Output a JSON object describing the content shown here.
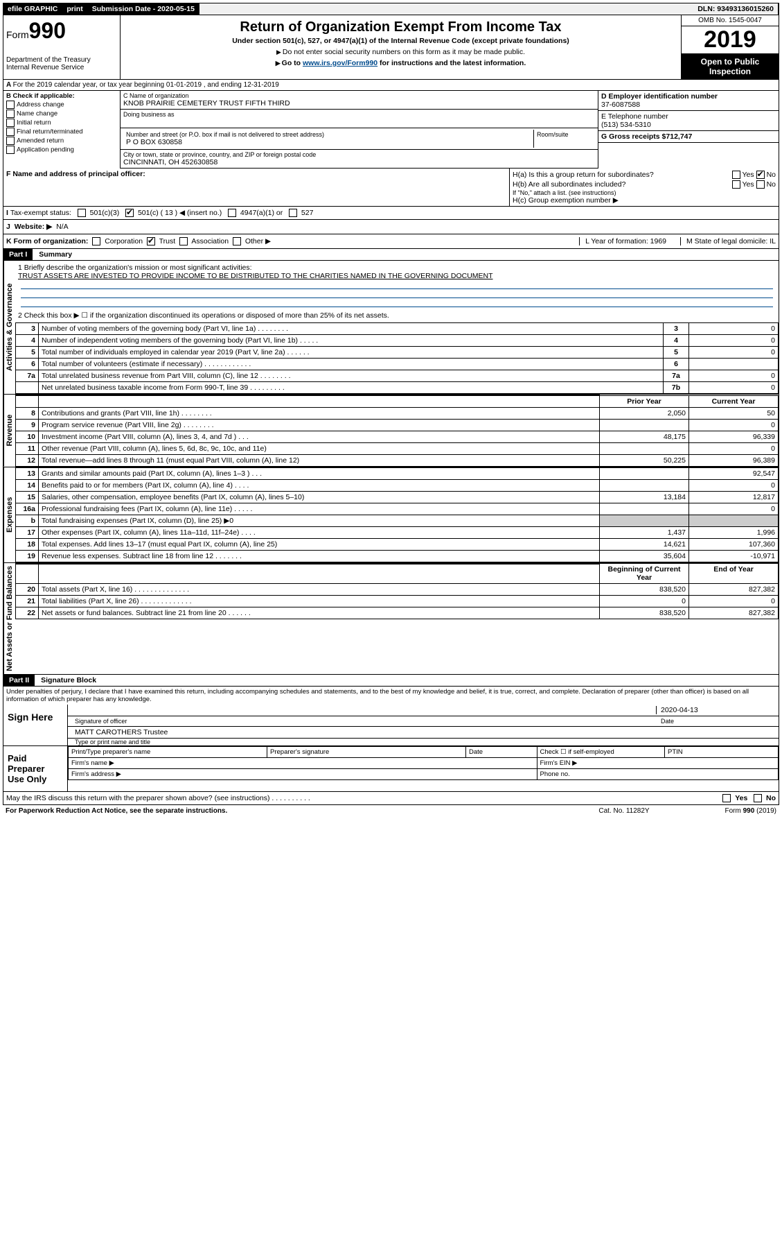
{
  "topbar": {
    "efile": "efile GRAPHIC",
    "print": "print",
    "sub_label": "Submission Date - 2020-05-15",
    "dln": "DLN: 93493136015260"
  },
  "header": {
    "form_prefix": "Form",
    "form_number": "990",
    "dept": "Department of the Treasury",
    "irs": "Internal Revenue Service",
    "title": "Return of Organization Exempt From Income Tax",
    "subtitle": "Under section 501(c), 527, or 4947(a)(1) of the Internal Revenue Code (except private foundations)",
    "note1": "Do not enter social security numbers on this form as it may be made public.",
    "note2_a": "Go to ",
    "note2_link": "www.irs.gov/Form990",
    "note2_b": " for instructions and the latest information.",
    "omb": "OMB No. 1545-0047",
    "year": "2019",
    "open": "Open to Public Inspection"
  },
  "row_a": "For the 2019 calendar year, or tax year beginning 01-01-2019     , and ending 12-31-2019",
  "box_b": {
    "title": "B Check if applicable:",
    "opts": [
      "Address change",
      "Name change",
      "Initial return",
      "Final return/terminated",
      "Amended return",
      "Application pending"
    ]
  },
  "box_c": {
    "name_label": "C Name of organization",
    "name": "KNOB PRAIRIE CEMETERY TRUST FIFTH THIRD",
    "dba_label": "Doing business as",
    "addr_label": "Number and street (or P.O. box if mail is not delivered to street address)",
    "room_label": "Room/suite",
    "addr": "P O BOX 630858",
    "city_label": "City or town, state or province, country, and ZIP or foreign postal code",
    "city": "CINCINNATI, OH  452630858"
  },
  "box_d": {
    "ein_label": "D Employer identification number",
    "ein": "37-6087588",
    "tel_label": "E Telephone number",
    "tel": "(513) 534-5310",
    "gross_label": "G Gross receipts $",
    "gross": "712,747"
  },
  "row_f": {
    "f_label": "F Name and address of principal officer:",
    "ha": "H(a)  Is this a group return for subordinates?",
    "hb": "H(b)  Are all subordinates included?",
    "hb_note": "If \"No,\" attach a list. (see instructions)",
    "hc": "H(c)  Group exemption number ▶",
    "yes": "Yes",
    "no": "No"
  },
  "row_i": {
    "label": "Tax-exempt status:",
    "c3": "501(c)(3)",
    "c": "501(c) ( 13 ) ◀ (insert no.)",
    "a4947": "4947(a)(1) or",
    "s527": "527"
  },
  "row_j": {
    "label": "Website: ▶",
    "val": "N/A"
  },
  "row_k": {
    "label": "K Form of organization:",
    "opts": [
      "Corporation",
      "Trust",
      "Association",
      "Other ▶"
    ],
    "l": "L Year of formation: 1969",
    "m": "M State of legal domicile: IL"
  },
  "part1": {
    "name": "Part I",
    "title": "Summary",
    "line1_label": "1  Briefly describe the organization's mission or most significant activities:",
    "line1_text": "TRUST ASSETS ARE INVESTED TO PROVIDE INCOME TO BE DISTRIBUTED TO THE CHARITIES NAMED IN THE GOVERNING DOCUMENT",
    "line2": "2  Check this box ▶ ☐  if the organization discontinued its operations or disposed of more than 25% of its net assets.",
    "rows_gov": [
      {
        "n": "3",
        "d": "Number of voting members of the governing body (Part VI, line 1a)  .  .  .  .  .  .  .  .",
        "lab": "3",
        "v": "0"
      },
      {
        "n": "4",
        "d": "Number of independent voting members of the governing body (Part VI, line 1b)  .  .  .  .  .",
        "lab": "4",
        "v": "0"
      },
      {
        "n": "5",
        "d": "Total number of individuals employed in calendar year 2019 (Part V, line 2a)  .  .  .  .  .  .",
        "lab": "5",
        "v": "0"
      },
      {
        "n": "6",
        "d": "Total number of volunteers (estimate if necessary)  .  .  .  .  .  .  .  .  .  .  .  .",
        "lab": "6",
        "v": ""
      },
      {
        "n": "7a",
        "d": "Total unrelated business revenue from Part VIII, column (C), line 12  .  .  .  .  .  .  .  .",
        "lab": "7a",
        "v": "0"
      },
      {
        "n": "",
        "d": "Net unrelated business taxable income from Form 990-T, line 39  .  .  .  .  .  .  .  .  .",
        "lab": "7b",
        "v": "0"
      }
    ],
    "col_prior": "Prior Year",
    "col_curr": "Current Year",
    "rows_rev": [
      {
        "n": "8",
        "d": "Contributions and grants (Part VIII, line 1h)  .  .  .  .  .  .  .  .",
        "p": "2,050",
        "c": "50"
      },
      {
        "n": "9",
        "d": "Program service revenue (Part VIII, line 2g)  .  .  .  .  .  .  .  .",
        "p": "",
        "c": "0"
      },
      {
        "n": "10",
        "d": "Investment income (Part VIII, column (A), lines 3, 4, and 7d )  .  .  .",
        "p": "48,175",
        "c": "96,339"
      },
      {
        "n": "11",
        "d": "Other revenue (Part VIII, column (A), lines 5, 6d, 8c, 9c, 10c, and 11e)",
        "p": "",
        "c": "0"
      },
      {
        "n": "12",
        "d": "Total revenue—add lines 8 through 11 (must equal Part VIII, column (A), line 12)",
        "p": "50,225",
        "c": "96,389"
      }
    ],
    "rows_exp": [
      {
        "n": "13",
        "d": "Grants and similar amounts paid (Part IX, column (A), lines 1–3 )  .  .  .",
        "p": "",
        "c": "92,547"
      },
      {
        "n": "14",
        "d": "Benefits paid to or for members (Part IX, column (A), line 4)  .  .  .  .",
        "p": "",
        "c": "0"
      },
      {
        "n": "15",
        "d": "Salaries, other compensation, employee benefits (Part IX, column (A), lines 5–10)",
        "p": "13,184",
        "c": "12,817"
      },
      {
        "n": "16a",
        "d": "Professional fundraising fees (Part IX, column (A), line 11e)  .  .  .  .  .",
        "p": "",
        "c": "0"
      },
      {
        "n": "b",
        "d": "Total fundraising expenses (Part IX, column (D), line 25) ▶0",
        "p": "—shade—",
        "c": "—shade—"
      },
      {
        "n": "17",
        "d": "Other expenses (Part IX, column (A), lines 11a–11d, 11f–24e)  .  .  .  .",
        "p": "1,437",
        "c": "1,996"
      },
      {
        "n": "18",
        "d": "Total expenses. Add lines 13–17 (must equal Part IX, column (A), line 25)",
        "p": "14,621",
        "c": "107,360"
      },
      {
        "n": "19",
        "d": "Revenue less expenses. Subtract line 18 from line 12  .  .  .  .  .  .  .",
        "p": "35,604",
        "c": "-10,971"
      }
    ],
    "col_beg": "Beginning of Current Year",
    "col_end": "End of Year",
    "rows_net": [
      {
        "n": "20",
        "d": "Total assets (Part X, line 16)  .  .  .  .  .  .  .  .  .  .  .  .  .  .",
        "p": "838,520",
        "c": "827,382"
      },
      {
        "n": "21",
        "d": "Total liabilities (Part X, line 26)  .  .  .  .  .  .  .  .  .  .  .  .  .",
        "p": "0",
        "c": "0"
      },
      {
        "n": "22",
        "d": "Net assets or fund balances. Subtract line 21 from line 20  .  .  .  .  .  .",
        "p": "838,520",
        "c": "827,382"
      }
    ],
    "vlabels": {
      "gov": "Activities & Governance",
      "rev": "Revenue",
      "exp": "Expenses",
      "net": "Net Assets or Fund Balances"
    }
  },
  "part2": {
    "name": "Part II",
    "title": "Signature Block",
    "jurat": "Under penalties of perjury, I declare that I have examined this return, including accompanying schedules and statements, and to the best of my knowledge and belief, it is true, correct, and complete. Declaration of preparer (other than officer) is based on all information of which preparer has any knowledge.",
    "sign_here": "Sign Here",
    "sig_off": "Signature of officer",
    "date": "2020-04-13",
    "date_l": "Date",
    "name_title": "MATT CAROTHERS  Trustee",
    "name_title_l": "Type or print name and title",
    "paid": "Paid Preparer Use Only",
    "prep_name": "Print/Type preparer's name",
    "prep_sig": "Preparer's signature",
    "prep_date": "Date",
    "self_emp": "Check ☐ if self-employed",
    "ptin": "PTIN",
    "firm_name": "Firm's name  ▶",
    "firm_ein": "Firm's EIN ▶",
    "firm_addr": "Firm's address ▶",
    "phone": "Phone no."
  },
  "footer": {
    "q": "May the IRS discuss this return with the preparer shown above? (see instructions)   .  .  .  .  .  .  .  .  .  .",
    "yes": "Yes",
    "no": "No",
    "pra": "For Paperwork Reduction Act Notice, see the separate instructions.",
    "cat": "Cat. No. 11282Y",
    "form": "Form 990 (2019)"
  }
}
